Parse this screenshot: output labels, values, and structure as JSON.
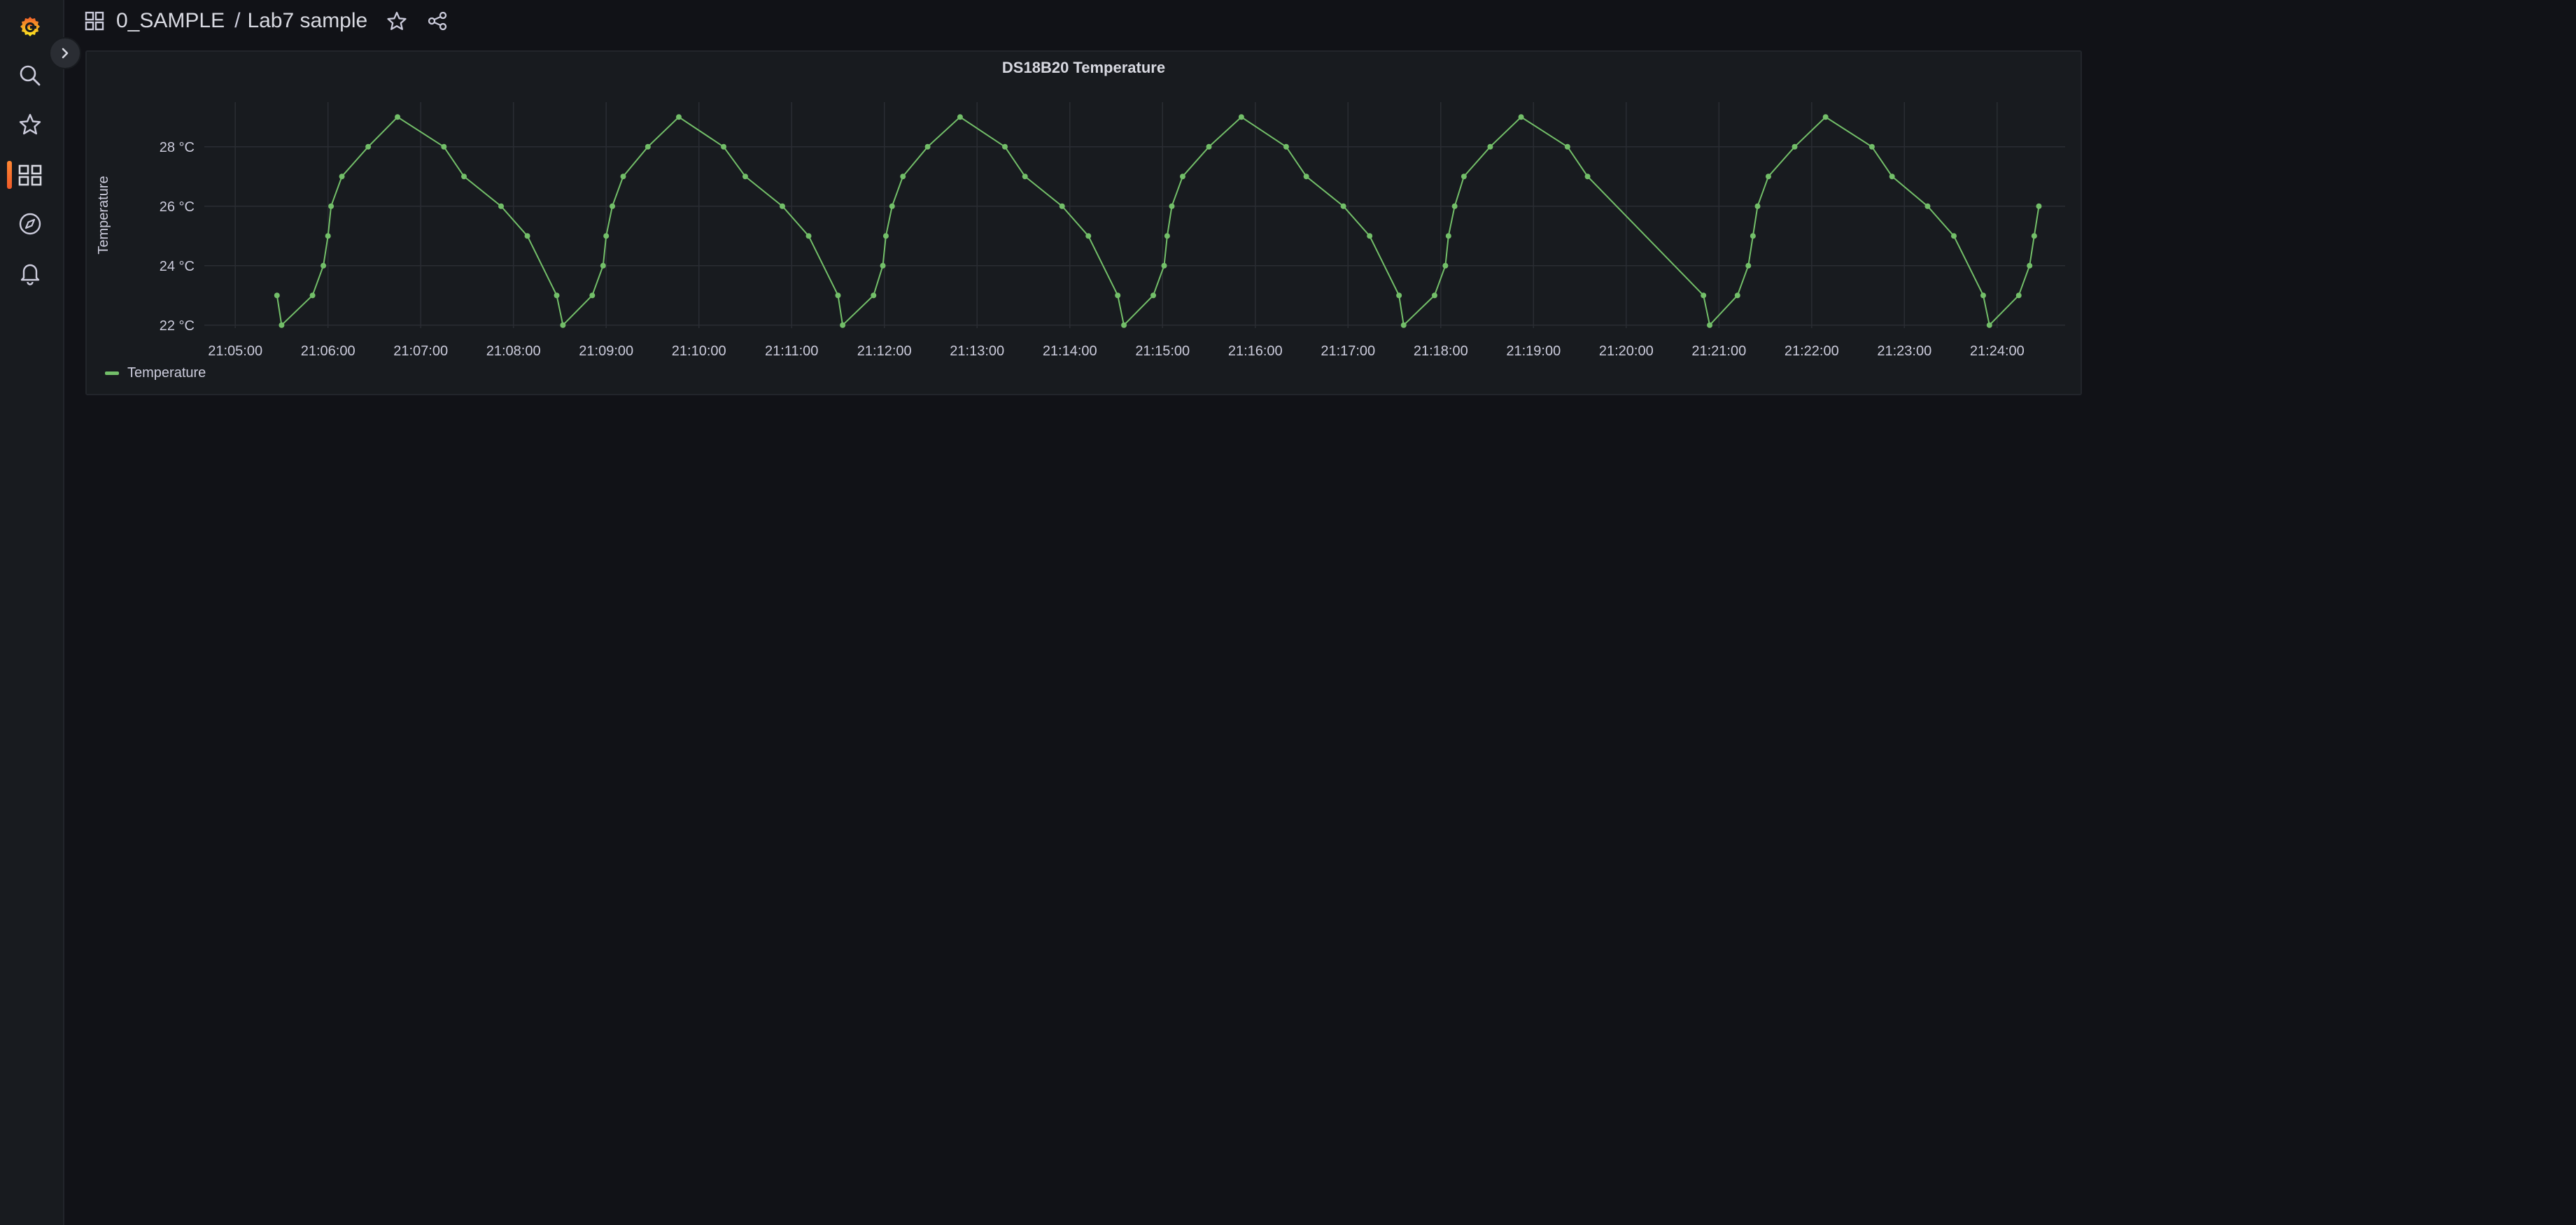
{
  "sidebar": {
    "items": [
      {
        "name": "grafana-logo",
        "icon": "grafana-logo"
      },
      {
        "name": "search",
        "icon": "search-icon"
      },
      {
        "name": "starred",
        "icon": "star-icon"
      },
      {
        "name": "dashboards",
        "icon": "apps-icon",
        "active": true
      },
      {
        "name": "explore",
        "icon": "compass-icon"
      },
      {
        "name": "alerting",
        "icon": "bell-icon"
      }
    ],
    "accent": "#f05a28"
  },
  "breadcrumb": {
    "folder": "0_SAMPLE",
    "separator": "/",
    "dashboard": "Lab7 sample"
  },
  "panel": {
    "title": "DS18B20 Temperature",
    "legend": "Temperature"
  },
  "chart_data": {
    "type": "line",
    "title": "DS18B20 Temperature",
    "ylabel": "Temperature",
    "xlabel": "",
    "unit": "°C",
    "series_color": "#73bf69",
    "grid": true,
    "legend_position": "bottom-left",
    "ylim": [
      21.9,
      29.5
    ],
    "yticks": [
      22,
      24,
      26,
      28
    ],
    "ytick_labels": [
      "22 °C",
      "24 °C",
      "26 °C",
      "28 °C"
    ],
    "xlim": [
      "21:04:40",
      "21:24:44"
    ],
    "xticks": [
      "21:05:00",
      "21:06:00",
      "21:07:00",
      "21:08:00",
      "21:09:00",
      "21:10:00",
      "21:11:00",
      "21:12:00",
      "21:13:00",
      "21:14:00",
      "21:15:00",
      "21:16:00",
      "21:17:00",
      "21:18:00",
      "21:19:00",
      "21:20:00",
      "21:21:00",
      "21:22:00",
      "21:23:00",
      "21:24:00"
    ],
    "series": [
      {
        "name": "Temperature",
        "points": [
          [
            "21:05:27",
            23
          ],
          [
            "21:05:30",
            22
          ],
          [
            "21:05:50",
            23
          ],
          [
            "21:05:57",
            24
          ],
          [
            "21:06:00",
            25
          ],
          [
            "21:06:02",
            26
          ],
          [
            "21:06:09",
            27
          ],
          [
            "21:06:26",
            28
          ],
          [
            "21:06:45",
            29
          ],
          [
            "21:07:15",
            28
          ],
          [
            "21:07:28",
            27
          ],
          [
            "21:07:52",
            26
          ],
          [
            "21:08:09",
            25
          ],
          [
            "21:08:28",
            23
          ],
          [
            "21:08:32",
            22
          ],
          [
            "21:08:51",
            23
          ],
          [
            "21:08:58",
            24
          ],
          [
            "21:09:00",
            25
          ],
          [
            "21:09:04",
            26
          ],
          [
            "21:09:11",
            27
          ],
          [
            "21:09:27",
            28
          ],
          [
            "21:09:47",
            29
          ],
          [
            "21:10:16",
            28
          ],
          [
            "21:10:30",
            27
          ],
          [
            "21:10:54",
            26
          ],
          [
            "21:11:11",
            25
          ],
          [
            "21:11:30",
            23
          ],
          [
            "21:11:33",
            22
          ],
          [
            "21:11:53",
            23
          ],
          [
            "21:11:59",
            24
          ],
          [
            "21:12:01",
            25
          ],
          [
            "21:12:05",
            26
          ],
          [
            "21:12:12",
            27
          ],
          [
            "21:12:28",
            28
          ],
          [
            "21:12:49",
            29
          ],
          [
            "21:13:18",
            28
          ],
          [
            "21:13:31",
            27
          ],
          [
            "21:13:55",
            26
          ],
          [
            "21:14:12",
            25
          ],
          [
            "21:14:31",
            23
          ],
          [
            "21:14:35",
            22
          ],
          [
            "21:14:54",
            23
          ],
          [
            "21:15:01",
            24
          ],
          [
            "21:15:03",
            25
          ],
          [
            "21:15:06",
            26
          ],
          [
            "21:15:13",
            27
          ],
          [
            "21:15:30",
            28
          ],
          [
            "21:15:51",
            29
          ],
          [
            "21:16:20",
            28
          ],
          [
            "21:16:33",
            27
          ],
          [
            "21:16:57",
            26
          ],
          [
            "21:17:14",
            25
          ],
          [
            "21:17:33",
            23
          ],
          [
            "21:17:36",
            22
          ],
          [
            "21:17:56",
            23
          ],
          [
            "21:18:03",
            24
          ],
          [
            "21:18:05",
            25
          ],
          [
            "21:18:09",
            26
          ],
          [
            "21:18:15",
            27
          ],
          [
            "21:18:32",
            28
          ],
          [
            "21:18:52",
            29
          ],
          [
            "21:19:22",
            28
          ],
          [
            "21:19:35",
            27
          ],
          [
            "21:20:50",
            23
          ],
          [
            "21:20:54",
            22
          ],
          [
            "21:21:12",
            23
          ],
          [
            "21:21:19",
            24
          ],
          [
            "21:21:22",
            25
          ],
          [
            "21:21:25",
            26
          ],
          [
            "21:21:32",
            27
          ],
          [
            "21:21:49",
            28
          ],
          [
            "21:22:09",
            29
          ],
          [
            "21:22:39",
            28
          ],
          [
            "21:22:52",
            27
          ],
          [
            "21:23:15",
            26
          ],
          [
            "21:23:32",
            25
          ],
          [
            "21:23:51",
            23
          ],
          [
            "21:23:55",
            22
          ],
          [
            "21:24:14",
            23
          ],
          [
            "21:24:21",
            24
          ],
          [
            "21:24:24",
            25
          ],
          [
            "21:24:27",
            26
          ]
        ]
      }
    ]
  }
}
